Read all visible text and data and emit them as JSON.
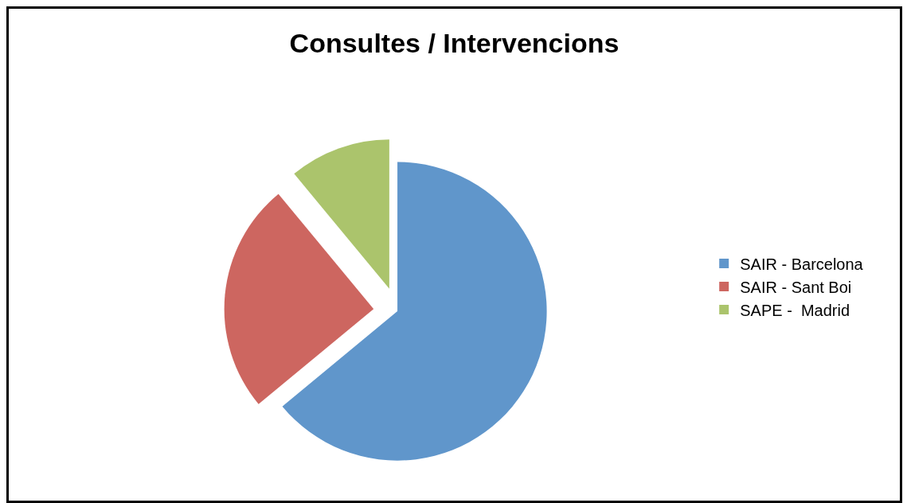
{
  "chart_data": {
    "type": "pie",
    "title": "Consultes / Intervencions",
    "categories": [
      "SAIR - Barcelona",
      "SAIR - Sant Boi",
      "SAPE -  Madrid"
    ],
    "values": [
      64,
      25,
      11
    ],
    "colors": [
      "#6096cb",
      "#cd6660",
      "#abc46c"
    ],
    "legend": "right"
  }
}
